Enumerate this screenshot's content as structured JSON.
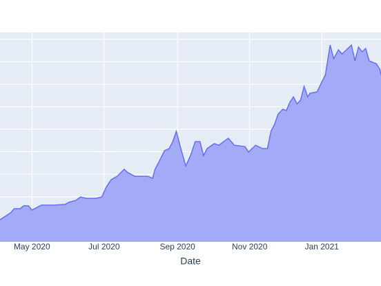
{
  "chart_data": {
    "type": "area",
    "x_label": "Date",
    "xlim": [
      "2020-04-04",
      "2021-02-20"
    ],
    "xticks": [
      {
        "value": "2020-05-01",
        "label": "May 2020"
      },
      {
        "value": "2020-07-01",
        "label": "Jul 2020"
      },
      {
        "value": "2020-09-01",
        "label": "Sep 2020"
      },
      {
        "value": "2020-11-01",
        "label": "Nov 2020"
      },
      {
        "value": "2021-01-01",
        "label": "Jan 2021"
      }
    ],
    "ylim": [
      0,
      9.3
    ],
    "yticks": [
      1,
      2,
      3,
      4,
      5,
      6,
      7,
      8,
      9
    ],
    "grid": true,
    "background": "#e5ecf6",
    "series": [
      {
        "color": "#636efa",
        "fill": "#a3aaf7",
        "x": [
          "2020-04-04",
          "2020-04-13",
          "2020-04-16",
          "2020-04-21",
          "2020-04-24",
          "2020-04-28",
          "2020-05-01",
          "2020-05-09",
          "2020-05-20",
          "2020-05-29",
          "2020-06-01",
          "2020-06-07",
          "2020-06-11",
          "2020-06-16",
          "2020-06-24",
          "2020-06-29",
          "2020-07-03",
          "2020-07-07",
          "2020-07-12",
          "2020-07-15",
          "2020-07-18",
          "2020-07-21",
          "2020-07-27",
          "2020-08-01",
          "2020-08-07",
          "2020-08-11",
          "2020-08-13",
          "2020-08-17",
          "2020-08-21",
          "2020-08-25",
          "2020-08-28",
          "2020-08-31",
          "2020-09-03",
          "2020-09-08",
          "2020-09-12",
          "2020-09-16",
          "2020-09-20",
          "2020-09-23",
          "2020-09-26",
          "2020-10-02",
          "2020-10-06",
          "2020-10-10",
          "2020-10-14",
          "2020-10-19",
          "2020-10-28",
          "2020-10-31",
          "2020-11-06",
          "2020-11-12",
          "2020-11-16",
          "2020-11-19",
          "2020-11-22",
          "2020-11-25",
          "2020-11-29",
          "2020-12-02",
          "2020-12-05",
          "2020-12-08",
          "2020-12-11",
          "2020-12-14",
          "2020-12-17",
          "2020-12-20",
          "2020-12-22",
          "2020-12-28",
          "2020-12-31",
          "2021-01-04",
          "2021-01-08",
          "2021-01-11",
          "2021-01-15",
          "2021-01-18",
          "2021-01-23",
          "2021-01-26",
          "2021-01-29",
          "2021-02-01",
          "2021-02-04",
          "2021-02-07",
          "2021-02-10",
          "2021-02-16",
          "2021-02-19",
          "2021-02-20"
        ],
        "values": [
          0.98,
          1.29,
          1.47,
          1.47,
          1.6,
          1.6,
          1.41,
          1.63,
          1.63,
          1.66,
          1.75,
          1.84,
          1.99,
          1.93,
          1.93,
          1.99,
          2.45,
          2.76,
          2.91,
          3.07,
          3.22,
          3.07,
          2.91,
          2.91,
          2.91,
          2.82,
          3.22,
          3.62,
          4.05,
          4.14,
          4.45,
          4.91,
          4.29,
          3.37,
          3.83,
          4.45,
          4.45,
          3.83,
          4.14,
          4.36,
          4.29,
          4.45,
          4.6,
          4.29,
          4.23,
          3.99,
          4.29,
          4.14,
          4.14,
          4.91,
          5.21,
          5.67,
          5.89,
          5.83,
          6.2,
          6.44,
          6.13,
          6.29,
          6.9,
          6.44,
          6.6,
          6.66,
          6.99,
          7.42,
          8.74,
          8.13,
          8.53,
          8.34,
          8.59,
          8.74,
          8.04,
          8.65,
          8.44,
          8.59,
          8.04,
          7.91,
          7.67,
          7.42
        ]
      }
    ]
  }
}
